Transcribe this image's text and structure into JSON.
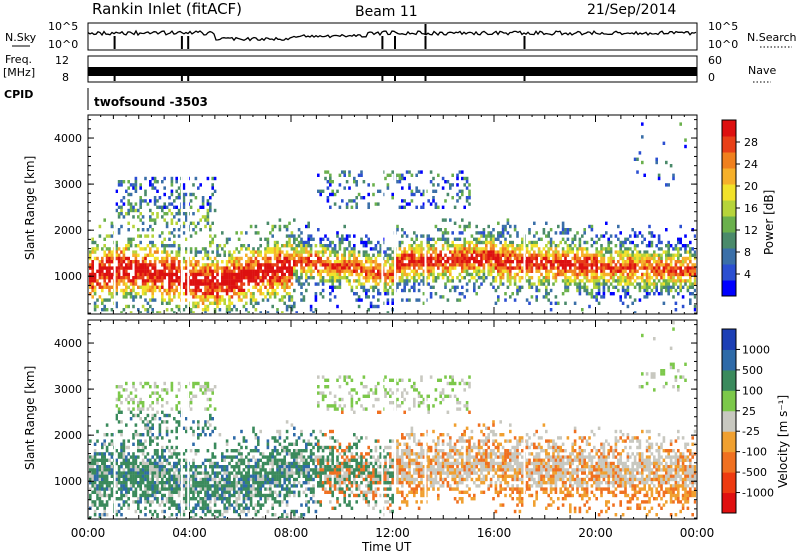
{
  "header": {
    "station": "Rankin Inlet (fitACF)",
    "beam": "Beam 11",
    "date": "21/Sep/2014"
  },
  "noise_panel": {
    "left_label": "N.Sky",
    "right_label": "N.Search",
    "left_ticks": [
      "10^5",
      "10^0"
    ],
    "right_ticks": [
      "10^5",
      "10^0"
    ]
  },
  "freq_panel": {
    "left_label_1": "Freq.",
    "left_label_2": "[MHz]",
    "right_label": "Nave",
    "left_ticks": [
      "12",
      "8"
    ],
    "right_ticks": [
      "60",
      "0"
    ]
  },
  "cpid_panel": {
    "label": "CPID",
    "value": "twofsound -3503"
  },
  "chart_data": [
    {
      "type": "heatmap",
      "title": "",
      "ylabel": "Slant Range [km]",
      "xlabel": "",
      "ylim": [
        180,
        4500
      ],
      "yticks": [
        "1000",
        "2000",
        "3000",
        "4000"
      ],
      "colorbar": {
        "label": "Power [dB]",
        "ticks": [
          "4",
          "8",
          "12",
          "16",
          "20",
          "24",
          "28"
        ],
        "colors": [
          "#0000ff",
          "#2b4fd1",
          "#3a6fa8",
          "#4a8a6a",
          "#6ab04c",
          "#b6d43a",
          "#f2e22a",
          "#f6b02a",
          "#f0801e",
          "#e84018",
          "#dd1010"
        ]
      }
    },
    {
      "type": "heatmap",
      "title": "",
      "ylabel": "Slant Range [km]",
      "xlabel": "Time UT",
      "ylim": [
        180,
        4500
      ],
      "yticks": [
        "1000",
        "2000",
        "3000",
        "4000"
      ],
      "xticks": [
        "00:00",
        "04:00",
        "08:00",
        "12:00",
        "16:00",
        "20:00",
        "00:00"
      ],
      "colorbar": {
        "label": "Velocity [m s⁻¹]",
        "ticks": [
          "1000",
          "500",
          "100",
          "25",
          "-25",
          "-100",
          "-500",
          "-1000"
        ],
        "colors": [
          "#1c3fb5",
          "#2e6aa8",
          "#3a8a5c",
          "#7cc84a",
          "#c8c8c0",
          "#f0a030",
          "#f07020",
          "#ee3a10",
          "#e01010"
        ]
      }
    }
  ]
}
